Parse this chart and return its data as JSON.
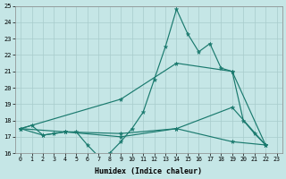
{
  "xlabel": "Humidex (Indice chaleur)",
  "bg_color": "#c5e6e6",
  "line_color": "#1a7a6e",
  "grid_color": "#a8cccc",
  "xlim": [
    -0.5,
    23.5
  ],
  "ylim": [
    16,
    25
  ],
  "xtick_vals": [
    0,
    1,
    2,
    3,
    4,
    5,
    6,
    7,
    8,
    9,
    10,
    11,
    12,
    13,
    14,
    15,
    16,
    17,
    18,
    19,
    20,
    21,
    22,
    23
  ],
  "ytick_vals": [
    16,
    17,
    18,
    19,
    20,
    21,
    22,
    23,
    24,
    25
  ],
  "series": [
    {
      "x": [
        0,
        1,
        2,
        3,
        4,
        5,
        6,
        7,
        8,
        9,
        10,
        11,
        12,
        13,
        14,
        15,
        16,
        17,
        18,
        19,
        20,
        21,
        22
      ],
      "y": [
        17.5,
        17.7,
        17.1,
        17.2,
        17.3,
        17.3,
        16.5,
        15.8,
        16.0,
        16.7,
        17.5,
        18.5,
        20.5,
        22.5,
        24.8,
        23.3,
        22.2,
        22.7,
        21.2,
        21.0,
        18.0,
        17.2,
        16.5
      ]
    },
    {
      "x": [
        0,
        9,
        14,
        19,
        22
      ],
      "y": [
        17.5,
        19.3,
        21.5,
        21.0,
        16.5
      ]
    },
    {
      "x": [
        0,
        4,
        9,
        14,
        19,
        22
      ],
      "y": [
        17.5,
        17.3,
        17.2,
        17.5,
        18.8,
        16.5
      ]
    },
    {
      "x": [
        0,
        2,
        4,
        9,
        14,
        19,
        22
      ],
      "y": [
        17.5,
        17.1,
        17.3,
        17.0,
        17.5,
        16.7,
        16.5
      ]
    }
  ]
}
